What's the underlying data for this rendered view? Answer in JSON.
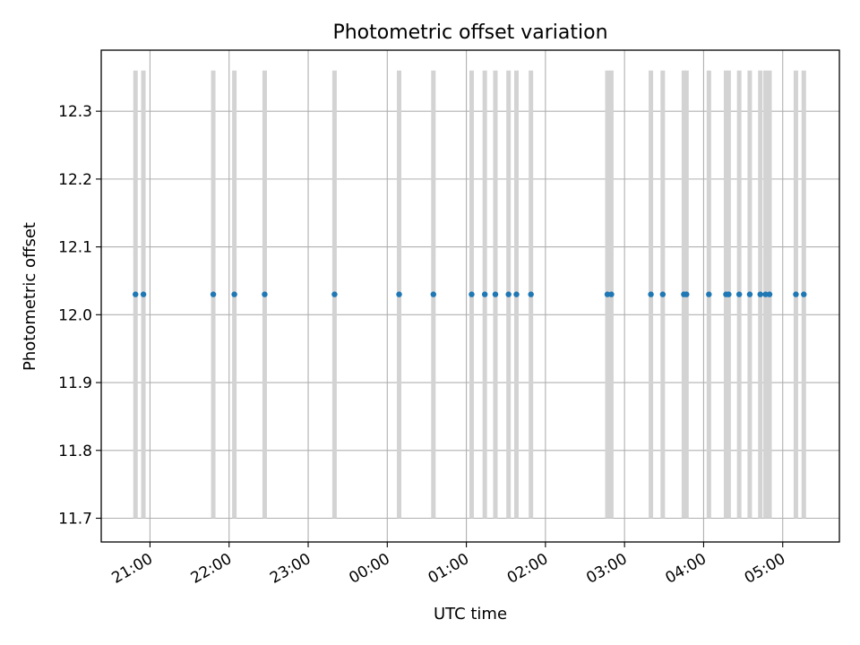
{
  "chart_data": {
    "type": "scatter",
    "title": "Photometric offset variation",
    "xlabel": "UTC time",
    "ylabel": "Photometric offset",
    "xlim": [
      "20:23",
      "05:43"
    ],
    "ylim": [
      11.665,
      12.39
    ],
    "grid": true,
    "point_color": "#1f77b4",
    "band_color": "#d3d3d3",
    "x_ticks": [
      "21:00",
      "22:00",
      "23:00",
      "00:00",
      "01:00",
      "02:00",
      "03:00",
      "04:00",
      "05:00"
    ],
    "y_ticks": [
      "11.7",
      "11.8",
      "11.9",
      "12.0",
      "12.1",
      "12.2",
      "12.3"
    ],
    "band_range": [
      11.7,
      12.36
    ],
    "series": [
      {
        "x": [
          "20:49",
          "20:55",
          "21:48",
          "22:04",
          "22:27",
          "23:20",
          "00:09",
          "00:35",
          "01:04",
          "01:14",
          "01:22",
          "01:32",
          "01:38",
          "01:49",
          "02:47",
          "02:50",
          "03:20",
          "03:29",
          "03:45",
          "03:47",
          "04:04",
          "04:17",
          "04:19",
          "04:27",
          "04:35",
          "04:43",
          "04:47",
          "04:50",
          "05:10",
          "05:16"
        ],
        "y": [
          12.03,
          12.03,
          12.03,
          12.03,
          12.03,
          12.03,
          12.03,
          12.03,
          12.03,
          12.03,
          12.03,
          12.03,
          12.03,
          12.03,
          12.03,
          12.03,
          12.03,
          12.03,
          12.03,
          12.03,
          12.03,
          12.03,
          12.03,
          12.03,
          12.03,
          12.03,
          12.03,
          12.03,
          12.03,
          12.03
        ]
      }
    ]
  }
}
